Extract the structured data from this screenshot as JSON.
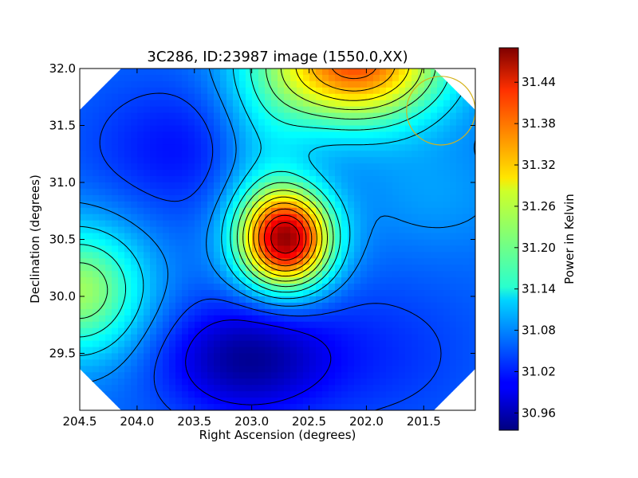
{
  "chart_data": {
    "type": "heatmap",
    "title": "3C286, ID:23987 image (1550.0,XX)",
    "xlabel": "Right Ascension (degrees)",
    "ylabel": "Declination (degrees)",
    "colorbar_label": "Power in Kelvin",
    "x_inverted": true,
    "xlim": [
      204.5,
      201.05
    ],
    "ylim": [
      29.0,
      32.0
    ],
    "x_ticks": [
      {
        "value": 204.5,
        "label": "204.5"
      },
      {
        "value": 204.0,
        "label": "204.0"
      },
      {
        "value": 203.5,
        "label": "203.5"
      },
      {
        "value": 203.0,
        "label": "203.0"
      },
      {
        "value": 202.5,
        "label": "202.5"
      },
      {
        "value": 202.0,
        "label": "202.0"
      },
      {
        "value": 201.5,
        "label": "201.5"
      }
    ],
    "y_ticks": [
      {
        "value": 29.5,
        "label": "29.5"
      },
      {
        "value": 30.0,
        "label": "30.0"
      },
      {
        "value": 30.5,
        "label": "30.5"
      },
      {
        "value": 31.0,
        "label": "31.0"
      },
      {
        "value": 31.5,
        "label": "31.5"
      },
      {
        "value": 32.0,
        "label": "32.0"
      }
    ],
    "colorbar_range": [
      30.935,
      31.49
    ],
    "colorbar_ticks": [
      {
        "value": 30.96,
        "label": "30.96"
      },
      {
        "value": 31.02,
        "label": "31.02"
      },
      {
        "value": 31.08,
        "label": "31.08"
      },
      {
        "value": 31.14,
        "label": "31.14"
      },
      {
        "value": 31.2,
        "label": "31.20"
      },
      {
        "value": 31.26,
        "label": "31.26"
      },
      {
        "value": 31.32,
        "label": "31.32"
      },
      {
        "value": 31.38,
        "label": "31.38"
      },
      {
        "value": 31.44,
        "label": "31.44"
      }
    ],
    "colormap": "jet",
    "background_level": 31.06,
    "features": [
      {
        "ra": 202.7,
        "dec": 30.5,
        "amplitude": 0.4,
        "sigma_ra": 0.28,
        "sigma_dec": 0.3
      },
      {
        "ra": 202.1,
        "dec": 32.05,
        "amplitude": 0.32,
        "sigma_ra": 0.55,
        "sigma_dec": 0.38
      },
      {
        "ra": 204.5,
        "dec": 30.05,
        "amplitude": 0.17,
        "sigma_ra": 0.4,
        "sigma_dec": 0.4
      },
      {
        "ra": 203.05,
        "dec": 29.45,
        "amplitude": -0.11,
        "sigma_ra": 0.5,
        "sigma_dec": 0.35
      },
      {
        "ra": 203.6,
        "dec": 31.3,
        "amplitude": -0.05,
        "sigma_ra": 0.55,
        "sigma_dec": 0.4
      },
      {
        "ra": 201.9,
        "dec": 29.5,
        "amplitude": -0.03,
        "sigma_ra": 0.6,
        "sigma_dec": 0.45
      },
      {
        "ra": 202.9,
        "dec": 31.25,
        "amplitude": 0.06,
        "sigma_ra": 0.3,
        "sigma_dec": 0.6
      },
      {
        "ra": 201.4,
        "dec": 30.9,
        "amplitude": 0.03,
        "sigma_ra": 0.5,
        "sigma_dec": 0.35
      }
    ],
    "contour_levels": [
      31.0,
      31.04,
      31.08,
      31.12,
      31.16,
      31.2,
      31.24,
      31.28,
      31.32,
      31.36,
      31.4,
      31.44
    ],
    "overlay_circle": {
      "ra": 201.35,
      "dec": 31.63,
      "radius_deg": 0.3,
      "color": "#d4b21c"
    },
    "grid": false
  }
}
